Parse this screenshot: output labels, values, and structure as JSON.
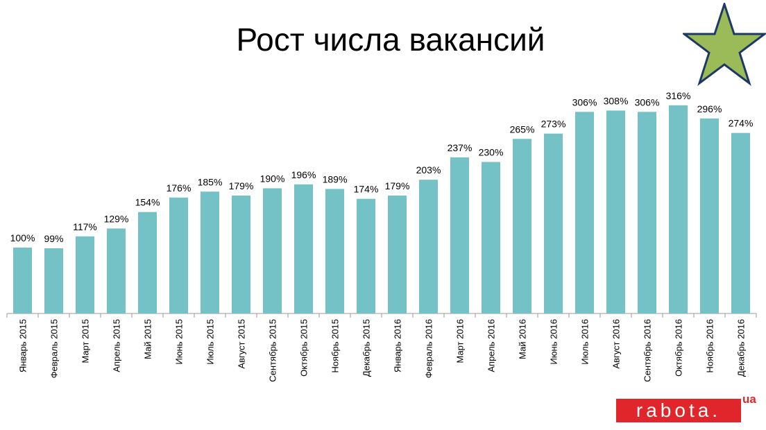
{
  "colors": {
    "bar": "#74c2c5",
    "star_fill": "#9bbb59",
    "star_stroke": "#1f3864",
    "logo": "#e0262a"
  },
  "chart_data": {
    "type": "bar",
    "title": "Рост числа вакансий",
    "categories": [
      "Январь  2015",
      "Февраль  2015",
      "Март  2015",
      "Апрель  2015",
      "Май  2015",
      "Июнь  2015",
      "Июль  2015",
      "Август  2015",
      "Сентябрь  2015",
      "Октябрь  2015",
      "Ноябрь  2015",
      "Декабрь  2015",
      "Январь  2016",
      "Февраль  2016",
      "Март  2016",
      "Апрель  2016",
      "Май  2016",
      "Июнь  2016",
      "Июль  2016",
      "Август  2016",
      "Сентябрь  2016",
      "Октябрь  2016",
      "Ноябрь  2016",
      "Декабрь  2016"
    ],
    "values": [
      100,
      99,
      117,
      129,
      154,
      176,
      185,
      179,
      190,
      196,
      189,
      174,
      179,
      203,
      237,
      230,
      265,
      273,
      306,
      308,
      306,
      316,
      296,
      274
    ],
    "data_labels": [
      "100%",
      "99%",
      "117%",
      "129%",
      "154%",
      "176%",
      "185%",
      "179%",
      "190%",
      "196%",
      "189%",
      "174%",
      "179%",
      "203%",
      "237%",
      "230%",
      "265%",
      "273%",
      "306%",
      "308%",
      "306%",
      "316%",
      "296%",
      "274%"
    ],
    "ylim": [
      0,
      330
    ],
    "grid": false,
    "legend": "none",
    "xlabel": "",
    "ylabel": ""
  },
  "logo": {
    "text": "rabota.",
    "suffix": "ua"
  },
  "decor": {
    "star_icon": "star-icon"
  }
}
